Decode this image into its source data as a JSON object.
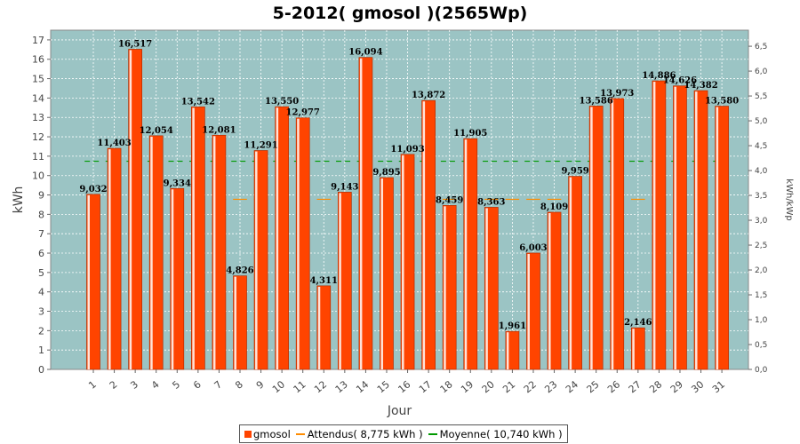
{
  "chart_data": {
    "type": "bar",
    "title": "5-2012( gmosol )(2565Wp)",
    "xlabel": "Jour",
    "ylabel": "kWh",
    "ylabel_right": "kWh/kWp",
    "ylim": [
      0,
      17.5
    ],
    "ylim_right": [
      0,
      6.823
    ],
    "y_ticks": [
      "0",
      "1",
      "2",
      "3",
      "4",
      "5",
      "6",
      "7",
      "8",
      "9",
      "10",
      "11",
      "12",
      "13",
      "14",
      "15",
      "16",
      "17"
    ],
    "y_right_ticks": [
      "0,0",
      "0,5",
      "1,0",
      "1,5",
      "2,0",
      "2,5",
      "3,0",
      "3,5",
      "4,0",
      "4,5",
      "5,0",
      "5,5",
      "6,0",
      "6,5"
    ],
    "categories": [
      "1",
      "2",
      "3",
      "4",
      "5",
      "6",
      "7",
      "8",
      "9",
      "10",
      "11",
      "12",
      "13",
      "14",
      "15",
      "16",
      "17",
      "18",
      "19",
      "20",
      "21",
      "22",
      "23",
      "24",
      "25",
      "26",
      "27",
      "28",
      "29",
      "30",
      "31"
    ],
    "series": [
      {
        "name": "gmosol",
        "values": [
          9.032,
          11.403,
          16.517,
          12.054,
          9.334,
          13.542,
          12.081,
          4.826,
          11.291,
          13.55,
          12.977,
          4.311,
          9.143,
          16.094,
          9.895,
          11.093,
          13.872,
          8.459,
          11.905,
          8.363,
          1.961,
          6.003,
          8.109,
          9.959,
          13.586,
          13.973,
          2.146,
          14.886,
          14.626,
          14.382,
          13.58
        ],
        "labels": [
          "9,032",
          "11,403",
          "16,517",
          "12,054",
          "9,334",
          "13,542",
          "12,081",
          "4,826",
          "11,291",
          "13,550",
          "12,977",
          "4,311",
          "9,143",
          "16,094",
          "9,895",
          "11,093",
          "13,872",
          "8,459",
          "11,905",
          "8,363",
          "1,961",
          "6,003",
          "8,109",
          "9,959",
          "13,586",
          "13,973",
          "2,146",
          "14,886",
          "14,626",
          "14,382",
          "13,580"
        ]
      }
    ],
    "reference_lines": [
      {
        "name": "Attendus",
        "value": 8.775
      },
      {
        "name": "Moyenne",
        "value": 10.74
      }
    ],
    "legend": {
      "position": "bottom",
      "items": [
        {
          "label": "gmosol",
          "kind": "box",
          "color": "#ff4400"
        },
        {
          "label": "Attendus( 8,775 kWh )",
          "kind": "line",
          "color": "#ff8c00"
        },
        {
          "label": "Moyenne( 10,740 kWh )",
          "kind": "line",
          "color": "#009900"
        }
      ]
    },
    "grid": true,
    "colors": {
      "plot_bg": "#9bc4c4",
      "bar": "#ff4400",
      "bar_edge": "#b32d00",
      "attendus": "#ff8c00",
      "moyenne": "#009900",
      "grid": "#ffffff"
    }
  }
}
